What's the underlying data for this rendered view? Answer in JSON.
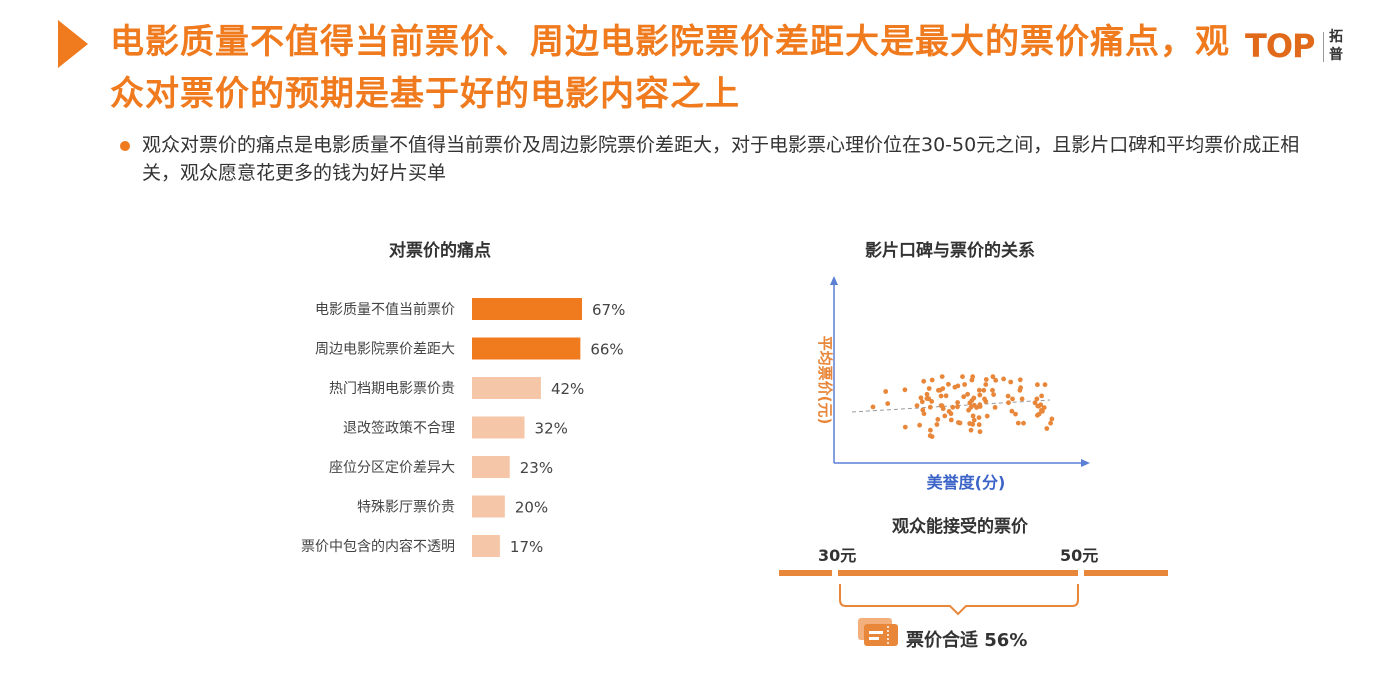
{
  "header": {
    "title": "电影质量不值得当前票价、周边电影院票价差距大是最大的票价痛点，观众对票价的预期是基于好的电影内容之上",
    "logo_text": "TOP",
    "logo_cn": "拓普",
    "accent_color": "#f07a1e"
  },
  "summary": {
    "bullet": "观众对票价的痛点是电影质量不值得当前票价及周边影院票价差距大，对于电影票心理价位在30-50元之间，且影片口碑和平均票价成正相关，观众愿意花更多的钱为好片买单"
  },
  "chart_data": [
    {
      "type": "bar",
      "orientation": "horizontal",
      "title": "对票价的痛点",
      "categories": [
        "电影质量不值当前票价",
        "周边电影院票价差距大",
        "热门档期电影票价贵",
        "退改签政策不合理",
        "座位分区定价差异大",
        "特殊影厅票价贵",
        "票价中包含的内容不透明"
      ],
      "values": [
        67,
        66,
        42,
        32,
        23,
        20,
        17
      ],
      "value_labels": [
        "67%",
        "66%",
        "42%",
        "32%",
        "23%",
        "20%",
        "17%"
      ],
      "highlight_color": "#f07a1e",
      "base_color": "#f5c7a8"
    },
    {
      "type": "scatter",
      "title": "影片口碑与票价的关系",
      "xlabel": "美誉度(分)",
      "ylabel": "平均票价(元)",
      "trend": "positive",
      "point_color": "#e8873a"
    },
    {
      "type": "range",
      "title": "观众能接受的票价",
      "min_label": "30元",
      "max_label": "50元",
      "note": "票价合适 56%",
      "color": "#e8873a"
    }
  ]
}
